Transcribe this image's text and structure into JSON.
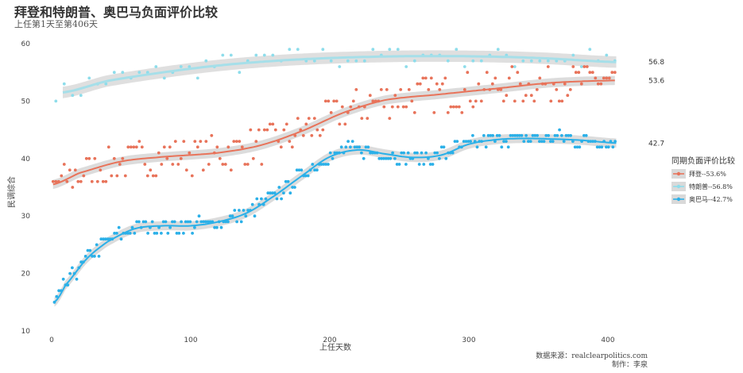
{
  "header": {
    "title": "拜登和特朗普、奥巴马负面评价比较",
    "subtitle": "上任第1天至第406天"
  },
  "footer": {
    "source": "数据来源：realclearpolitics.com",
    "author": "制作：李泉"
  },
  "chart_data": {
    "type": "scatter",
    "xlabel": "上任天数",
    "ylabel": "民调综合",
    "xlim": [
      0,
      406
    ],
    "ylim": [
      10,
      60
    ],
    "xticks": [
      0,
      100,
      200,
      300,
      400
    ],
    "yticks": [
      10,
      20,
      30,
      40,
      50,
      60
    ],
    "grid": false,
    "legend": {
      "title": "同期负面评价比较",
      "placement": "right"
    },
    "series": [
      {
        "name": "拜登--53.6%",
        "color": "#E8735A",
        "end_label": "53.6",
        "trend": [
          [
            1,
            35.5
          ],
          [
            20,
            37.5
          ],
          [
            50,
            39.5
          ],
          [
            80,
            40.3
          ],
          [
            120,
            41
          ],
          [
            150,
            42.3
          ],
          [
            180,
            44.8
          ],
          [
            210,
            48
          ],
          [
            240,
            50.2
          ],
          [
            280,
            51.2
          ],
          [
            320,
            52.2
          ],
          [
            360,
            53.2
          ],
          [
            406,
            53.6
          ]
        ],
        "points_spec": {
          "x_start": 1,
          "x_end": 406,
          "step": 2,
          "noise": 3.2
        }
      },
      {
        "name": "特朗普--56.8%",
        "color": "#8EDDEB",
        "end_label": "56.8",
        "trend": [
          [
            8,
            51.5
          ],
          [
            40,
            53.5
          ],
          [
            80,
            55
          ],
          [
            120,
            56.2
          ],
          [
            160,
            57
          ],
          [
            200,
            57.5
          ],
          [
            250,
            57.8
          ],
          [
            300,
            57.8
          ],
          [
            350,
            57.5
          ],
          [
            406,
            56.8
          ]
        ],
        "points_spec": {
          "x_start": 3,
          "x_end": 406,
          "step": 6,
          "noise": 2.0
        }
      },
      {
        "name": "奥巴马--42.7%",
        "color": "#2BB0E8",
        "end_label": "42.7",
        "trend": [
          [
            2,
            15
          ],
          [
            10,
            18
          ],
          [
            25,
            22.5
          ],
          [
            40,
            25.5
          ],
          [
            60,
            27.8
          ],
          [
            80,
            28.3
          ],
          [
            100,
            28.3
          ],
          [
            120,
            29
          ],
          [
            140,
            30.5
          ],
          [
            160,
            33.5
          ],
          [
            180,
            37
          ],
          [
            200,
            40.3
          ],
          [
            220,
            41.5
          ],
          [
            240,
            40.8
          ],
          [
            260,
            40.2
          ],
          [
            280,
            40.6
          ],
          [
            300,
            42.5
          ],
          [
            320,
            43.3
          ],
          [
            340,
            43.5
          ],
          [
            360,
            43.4
          ],
          [
            380,
            43.2
          ],
          [
            406,
            42.7
          ]
        ],
        "points_spec": {
          "x_start": 2,
          "x_end": 406,
          "step": 1.6,
          "noise": 1.3
        }
      }
    ]
  }
}
